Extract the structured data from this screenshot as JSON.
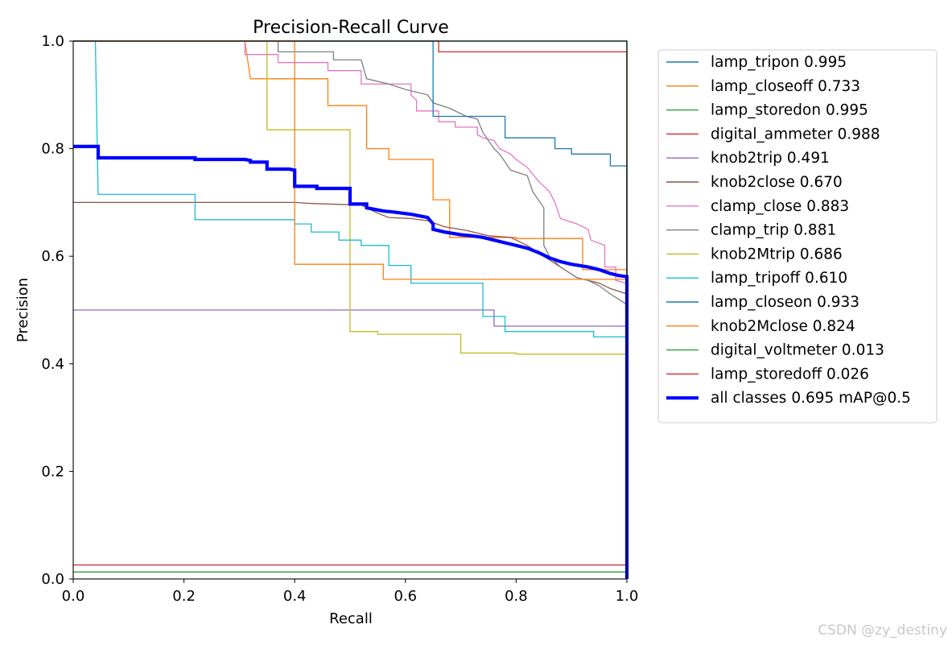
{
  "chart_data": {
    "type": "line",
    "title": "Precision-Recall Curve",
    "xlabel": "Recall",
    "ylabel": "Precision",
    "xlim": [
      0,
      1
    ],
    "ylim": [
      0,
      1
    ],
    "xticks": [
      "0.0",
      "0.2",
      "0.4",
      "0.6",
      "0.8",
      "1.0"
    ],
    "yticks": [
      "0.0",
      "0.2",
      "0.4",
      "0.6",
      "0.8",
      "1.0"
    ],
    "grid": false,
    "legend_position": "outside-right",
    "series": [
      {
        "name": "lamp_tripon",
        "label": "lamp_tripon 0.995",
        "color": "#1f77b4",
        "points": [
          [
            0,
            1.0
          ],
          [
            1.0,
            1.0
          ],
          [
            1.0,
            0.0
          ]
        ]
      },
      {
        "name": "lamp_closeoff",
        "label": "lamp_closeoff 0.733",
        "color": "#ff7f0e",
        "points": [
          [
            0,
            1.0
          ],
          [
            0.31,
            1.0
          ],
          [
            0.32,
            0.93
          ],
          [
            0.46,
            0.93
          ],
          [
            0.46,
            0.88
          ],
          [
            0.53,
            0.88
          ],
          [
            0.53,
            0.8
          ],
          [
            0.57,
            0.8
          ],
          [
            0.57,
            0.78
          ],
          [
            0.65,
            0.78
          ],
          [
            0.65,
            0.705
          ],
          [
            0.68,
            0.705
          ],
          [
            0.68,
            0.635
          ],
          [
            0.8,
            0.635
          ],
          [
            0.8,
            0.633
          ],
          [
            0.92,
            0.633
          ],
          [
            0.92,
            0.575
          ],
          [
            1.0,
            0.575
          ],
          [
            1.0,
            0.0
          ]
        ]
      },
      {
        "name": "lamp_storedon",
        "label": "lamp_storedon 0.995",
        "color": "#2ca02c",
        "points": [
          [
            0,
            1.0
          ],
          [
            1.0,
            1.0
          ],
          [
            1.0,
            0.0
          ]
        ]
      },
      {
        "name": "digital_ammeter",
        "label": "digital_ammeter 0.988",
        "color": "#d62728",
        "points": [
          [
            0,
            1.0
          ],
          [
            0.66,
            1.0
          ],
          [
            0.66,
            0.98
          ],
          [
            1.0,
            0.98
          ],
          [
            1.0,
            0.0
          ]
        ]
      },
      {
        "name": "knob2trip",
        "label": "knob2trip 0.491",
        "color": "#9467bd",
        "points": [
          [
            0,
            0.5
          ],
          [
            0.76,
            0.5
          ],
          [
            0.76,
            0.47
          ],
          [
            1.0,
            0.47
          ],
          [
            1.0,
            0.0
          ]
        ]
      },
      {
        "name": "knob2close",
        "label": "knob2close 0.670",
        "color": "#8c564b",
        "points": [
          [
            0,
            0.7
          ],
          [
            0.4,
            0.7
          ],
          [
            0.43,
            0.698
          ],
          [
            0.52,
            0.695
          ],
          [
            0.55,
            0.68
          ],
          [
            0.57,
            0.672
          ],
          [
            0.61,
            0.67
          ],
          [
            0.64,
            0.666
          ],
          [
            0.67,
            0.655
          ],
          [
            0.71,
            0.648
          ],
          [
            0.75,
            0.638
          ],
          [
            0.79,
            0.635
          ],
          [
            0.82,
            0.62
          ],
          [
            0.85,
            0.6
          ],
          [
            0.88,
            0.58
          ],
          [
            0.91,
            0.56
          ],
          [
            0.95,
            0.55
          ],
          [
            0.97,
            0.54
          ],
          [
            1.0,
            0.53
          ],
          [
            1.0,
            0.0
          ]
        ]
      },
      {
        "name": "clamp_close",
        "label": "clamp_close 0.883",
        "color": "#e377c2",
        "points": [
          [
            0,
            1.0
          ],
          [
            0.31,
            1.0
          ],
          [
            0.31,
            0.975
          ],
          [
            0.37,
            0.975
          ],
          [
            0.37,
            0.96
          ],
          [
            0.46,
            0.96
          ],
          [
            0.46,
            0.945
          ],
          [
            0.52,
            0.945
          ],
          [
            0.52,
            0.92
          ],
          [
            0.61,
            0.92
          ],
          [
            0.61,
            0.9
          ],
          [
            0.62,
            0.89
          ],
          [
            0.62,
            0.87
          ],
          [
            0.66,
            0.87
          ],
          [
            0.66,
            0.85
          ],
          [
            0.69,
            0.85
          ],
          [
            0.69,
            0.84
          ],
          [
            0.73,
            0.84
          ],
          [
            0.73,
            0.826
          ],
          [
            0.74,
            0.82
          ],
          [
            0.76,
            0.815
          ],
          [
            0.77,
            0.8
          ],
          [
            0.79,
            0.79
          ],
          [
            0.8,
            0.78
          ],
          [
            0.82,
            0.765
          ],
          [
            0.84,
            0.74
          ],
          [
            0.86,
            0.72
          ],
          [
            0.87,
            0.7
          ],
          [
            0.88,
            0.67
          ],
          [
            0.91,
            0.66
          ],
          [
            0.93,
            0.65
          ],
          [
            0.935,
            0.63
          ],
          [
            0.96,
            0.62
          ],
          [
            0.96,
            0.58
          ],
          [
            0.98,
            0.58
          ],
          [
            0.98,
            0.555
          ],
          [
            1.0,
            0.55
          ],
          [
            1.0,
            0.0
          ]
        ]
      },
      {
        "name": "clamp_trip",
        "label": "clamp_trip 0.881",
        "color": "#7f7f7f",
        "points": [
          [
            0,
            1.0
          ],
          [
            0.37,
            1.0
          ],
          [
            0.37,
            0.98
          ],
          [
            0.47,
            0.98
          ],
          [
            0.47,
            0.965
          ],
          [
            0.52,
            0.965
          ],
          [
            0.53,
            0.93
          ],
          [
            0.57,
            0.92
          ],
          [
            0.6,
            0.91
          ],
          [
            0.64,
            0.9
          ],
          [
            0.65,
            0.885
          ],
          [
            0.68,
            0.875
          ],
          [
            0.71,
            0.86
          ],
          [
            0.73,
            0.855
          ],
          [
            0.74,
            0.83
          ],
          [
            0.76,
            0.8
          ],
          [
            0.77,
            0.79
          ],
          [
            0.79,
            0.76
          ],
          [
            0.82,
            0.75
          ],
          [
            0.83,
            0.72
          ],
          [
            0.85,
            0.69
          ],
          [
            0.85,
            0.62
          ],
          [
            0.86,
            0.6
          ],
          [
            0.88,
            0.58
          ],
          [
            0.91,
            0.56
          ],
          [
            0.93,
            0.555
          ],
          [
            0.95,
            0.545
          ],
          [
            0.97,
            0.53
          ],
          [
            1.0,
            0.51
          ],
          [
            1.0,
            0.0
          ]
        ]
      },
      {
        "name": "knob2Mtrip",
        "label": "knob2Mtrip 0.686",
        "color": "#bcbd22",
        "points": [
          [
            0,
            1.0
          ],
          [
            0.35,
            1.0
          ],
          [
            0.35,
            0.835
          ],
          [
            0.5,
            0.835
          ],
          [
            0.5,
            0.46
          ],
          [
            0.55,
            0.46
          ],
          [
            0.55,
            0.455
          ],
          [
            0.7,
            0.455
          ],
          [
            0.7,
            0.42
          ],
          [
            0.8,
            0.42
          ],
          [
            0.8,
            0.418
          ],
          [
            1.0,
            0.418
          ],
          [
            1.0,
            0.0
          ]
        ]
      },
      {
        "name": "lamp_tripoff",
        "label": "lamp_tripoff 0.610",
        "color": "#17becf",
        "points": [
          [
            0,
            1.0
          ],
          [
            0.04,
            1.0
          ],
          [
            0.045,
            0.715
          ],
          [
            0.22,
            0.715
          ],
          [
            0.22,
            0.668
          ],
          [
            0.4,
            0.668
          ],
          [
            0.4,
            0.66
          ],
          [
            0.43,
            0.66
          ],
          [
            0.43,
            0.645
          ],
          [
            0.48,
            0.645
          ],
          [
            0.48,
            0.63
          ],
          [
            0.52,
            0.63
          ],
          [
            0.52,
            0.62
          ],
          [
            0.57,
            0.62
          ],
          [
            0.57,
            0.583
          ],
          [
            0.61,
            0.583
          ],
          [
            0.61,
            0.55
          ],
          [
            0.74,
            0.55
          ],
          [
            0.74,
            0.488
          ],
          [
            0.78,
            0.488
          ],
          [
            0.78,
            0.46
          ],
          [
            0.94,
            0.46
          ],
          [
            0.94,
            0.45
          ],
          [
            1.0,
            0.45
          ],
          [
            1.0,
            0.0
          ]
        ]
      },
      {
        "name": "lamp_closeon",
        "label": "lamp_closeon 0.933",
        "color": "#1f77b4",
        "points": [
          [
            0,
            1.0
          ],
          [
            0.65,
            1.0
          ],
          [
            0.65,
            0.86
          ],
          [
            0.78,
            0.86
          ],
          [
            0.78,
            0.82
          ],
          [
            0.87,
            0.82
          ],
          [
            0.87,
            0.8
          ],
          [
            0.9,
            0.8
          ],
          [
            0.9,
            0.79
          ],
          [
            0.97,
            0.79
          ],
          [
            0.97,
            0.768
          ],
          [
            1.0,
            0.768
          ],
          [
            1.0,
            0.0
          ]
        ]
      },
      {
        "name": "knob2Mclose",
        "label": "knob2Mclose 0.824",
        "color": "#ff7f0e",
        "points": [
          [
            0,
            1.0
          ],
          [
            0.4,
            1.0
          ],
          [
            0.4,
            0.585
          ],
          [
            0.56,
            0.585
          ],
          [
            0.56,
            0.557
          ],
          [
            1.0,
            0.557
          ],
          [
            1.0,
            0.0
          ]
        ]
      },
      {
        "name": "digital_voltmeter",
        "label": "digital_voltmeter 0.013",
        "color": "#2ca02c",
        "points": [
          [
            0,
            0.013
          ],
          [
            1.0,
            0.013
          ],
          [
            1.0,
            0.0
          ]
        ]
      },
      {
        "name": "lamp_storedoff",
        "label": "lamp_storedoff 0.026",
        "color": "#d62728",
        "points": [
          [
            0,
            0.026
          ],
          [
            1.0,
            0.026
          ],
          [
            1.0,
            0.0
          ]
        ]
      },
      {
        "name": "all_classes",
        "label": "all classes 0.695 mAP@0.5",
        "color": "#0000ff",
        "thick": true,
        "points": [
          [
            0,
            0.804
          ],
          [
            0.045,
            0.804
          ],
          [
            0.045,
            0.783
          ],
          [
            0.1,
            0.783
          ],
          [
            0.22,
            0.783
          ],
          [
            0.22,
            0.78
          ],
          [
            0.31,
            0.78
          ],
          [
            0.32,
            0.778
          ],
          [
            0.32,
            0.775
          ],
          [
            0.35,
            0.775
          ],
          [
            0.35,
            0.762
          ],
          [
            0.39,
            0.762
          ],
          [
            0.4,
            0.76
          ],
          [
            0.4,
            0.73
          ],
          [
            0.44,
            0.73
          ],
          [
            0.44,
            0.726
          ],
          [
            0.5,
            0.726
          ],
          [
            0.5,
            0.72
          ],
          [
            0.5,
            0.697
          ],
          [
            0.53,
            0.697
          ],
          [
            0.53,
            0.69
          ],
          [
            0.56,
            0.684
          ],
          [
            0.58,
            0.682
          ],
          [
            0.61,
            0.678
          ],
          [
            0.64,
            0.672
          ],
          [
            0.65,
            0.66
          ],
          [
            0.65,
            0.65
          ],
          [
            0.67,
            0.645
          ],
          [
            0.7,
            0.64
          ],
          [
            0.72,
            0.638
          ],
          [
            0.74,
            0.635
          ],
          [
            0.76,
            0.63
          ],
          [
            0.78,
            0.625
          ],
          [
            0.8,
            0.62
          ],
          [
            0.82,
            0.615
          ],
          [
            0.84,
            0.607
          ],
          [
            0.86,
            0.597
          ],
          [
            0.88,
            0.59
          ],
          [
            0.9,
            0.585
          ],
          [
            0.93,
            0.58
          ],
          [
            0.95,
            0.575
          ],
          [
            0.97,
            0.568
          ],
          [
            0.985,
            0.564
          ],
          [
            1.0,
            0.562
          ],
          [
            1.0,
            0.0
          ]
        ]
      }
    ]
  },
  "watermark": "CSDN @zy_destiny"
}
